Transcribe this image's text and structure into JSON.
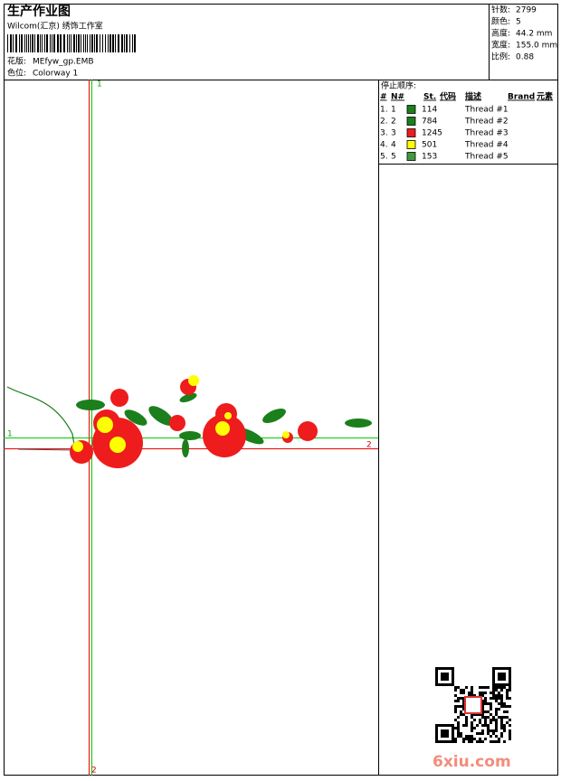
{
  "header": {
    "title": "生产作业图",
    "company": "Wilcom(汇京) 绣饰工作室",
    "design_label": "花版:",
    "design": "MEfyw_gp.EMB",
    "colorway_label": "色位:",
    "colorway": "Colorway 1"
  },
  "stats": [
    [
      "针数:",
      "2799"
    ],
    [
      "颜色:",
      "5"
    ],
    [
      "高度:",
      "44.2 mm"
    ],
    [
      "宽度:",
      "155.0 mm"
    ],
    [
      "比例:",
      "0.88"
    ]
  ],
  "stop_sequence": {
    "title": "停止顺序:",
    "headers": [
      "#",
      "N#",
      "St.",
      "代码",
      "描述",
      "Brand",
      "元素"
    ],
    "rows": [
      {
        "no": "1.",
        "n": "1",
        "color": "#1b7f1b",
        "stitches": "114",
        "description": "Thread #1"
      },
      {
        "no": "2.",
        "n": "2",
        "color": "#1b7f1b",
        "stitches": "784",
        "description": "Thread #2"
      },
      {
        "no": "3.",
        "n": "3",
        "color": "#ee1c1c",
        "stitches": "1245",
        "description": "Thread #3"
      },
      {
        "no": "4.",
        "n": "4",
        "color": "#ffff00",
        "stitches": "501",
        "description": "Thread #4"
      },
      {
        "no": "5.",
        "n": "5",
        "color": "#3f9a3f",
        "stitches": "153",
        "description": "Thread #5"
      }
    ]
  },
  "markers": {
    "top": "1",
    "left": "1",
    "right": "2",
    "bottom": "2"
  },
  "watermark": "6xiu.com"
}
